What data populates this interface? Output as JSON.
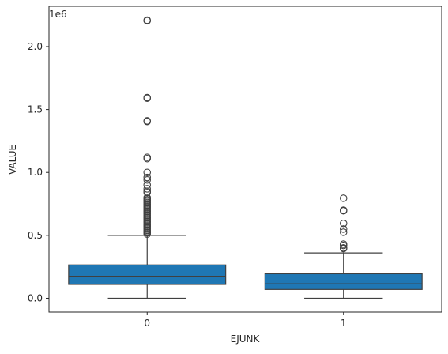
{
  "chart_data": {
    "type": "box",
    "title": "",
    "xlabel": "EJUNK",
    "ylabel": "VALUE",
    "y_offset_label": "1e6",
    "categories": [
      "0",
      "1"
    ],
    "ylim": [
      -110000,
      2320000
    ],
    "yticks": [
      0.0,
      500000,
      1000000,
      1500000,
      2000000
    ],
    "ytick_labels": [
      "0.0",
      "0.5",
      "1.0",
      "1.5",
      "2.0"
    ],
    "grid": false,
    "legend": "none",
    "box_color": "#1f77b4",
    "boxes": [
      {
        "category": "0",
        "whisker_low": 0,
        "q1": 110000,
        "median": 175000,
        "q3": 265000,
        "whisker_high": 500000,
        "outliers": [
          2210000,
          2205000,
          1595000,
          1590000,
          1410000,
          1405000,
          1120000,
          1110000,
          1000000,
          960000,
          940000,
          900000,
          870000,
          850000,
          840000,
          800000,
          790000,
          780000,
          770000,
          760000,
          750000,
          740000,
          730000,
          720000,
          710000,
          700000,
          690000,
          680000,
          670000,
          660000,
          650000,
          640000,
          630000,
          620000,
          610000,
          600000,
          590000,
          580000,
          570000,
          560000,
          550000,
          540000,
          530000,
          520000,
          510000
        ]
      },
      {
        "category": "1",
        "whisker_low": 0,
        "q1": 70000,
        "median": 115000,
        "q3": 195000,
        "whisker_high": 360000,
        "outliers": [
          795000,
          700000,
          695000,
          595000,
          550000,
          525000,
          430000,
          420000,
          400000,
          395000
        ]
      }
    ]
  }
}
